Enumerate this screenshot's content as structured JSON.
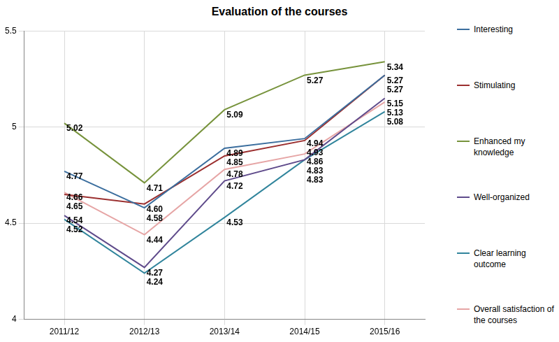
{
  "chart_data": {
    "type": "line",
    "title": "Evaluation of the courses",
    "categories": [
      "2011/12",
      "2012/13",
      "2013/14",
      "2014/15",
      "2015/16"
    ],
    "series": [
      {
        "name": "Interesting",
        "color": "#3b6e9e",
        "values": [
          4.77,
          4.58,
          4.89,
          4.94,
          5.27
        ]
      },
      {
        "name": "Stimulating",
        "color": "#9b2f2f",
        "values": [
          4.65,
          4.6,
          4.85,
          4.93,
          5.27
        ],
        "value_labels": [
          "4.65",
          "4.60",
          "4.85",
          "4.93",
          "5.27"
        ]
      },
      {
        "name": "Enhanced my knowledge",
        "color": "#77933c",
        "values": [
          5.02,
          4.71,
          5.09,
          5.27,
          5.34
        ]
      },
      {
        "name": "Well-organized",
        "color": "#5f4b8b",
        "values": [
          4.54,
          4.27,
          4.72,
          4.83,
          5.15
        ]
      },
      {
        "name": "Clear learning outcome",
        "color": "#31859c",
        "values": [
          4.52,
          4.24,
          4.53,
          4.83,
          5.08
        ]
      },
      {
        "name": "Overall satisfaction of the courses",
        "color": "#e6a5a5",
        "values": [
          4.66,
          4.44,
          4.78,
          4.86,
          5.13
        ]
      }
    ],
    "ylim": [
      4,
      5.5
    ],
    "yticks": [
      4,
      4.5,
      5,
      5.5
    ],
    "grid": true,
    "legend": "right",
    "data_labels": true
  }
}
